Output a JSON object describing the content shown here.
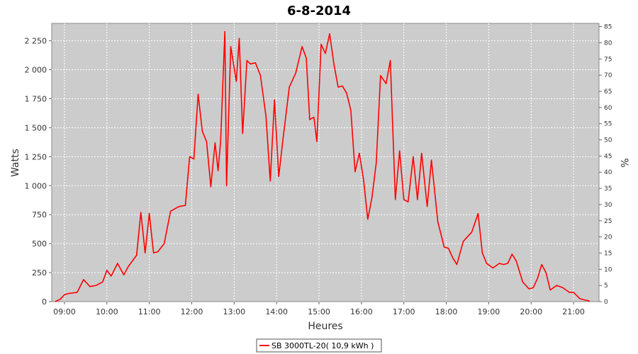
{
  "chart_data": {
    "type": "line",
    "title": "6-8-2014",
    "xlabel": "Heures",
    "ylabel": "Watts",
    "y2label": "%",
    "xlim": [
      8.7,
      21.6
    ],
    "ylim": [
      0,
      2400
    ],
    "y2lim": [
      0,
      86
    ],
    "x_ticks": [
      "09:00",
      "10:00",
      "11:00",
      "12:00",
      "13:00",
      "14:00",
      "15:00",
      "16:00",
      "17:00",
      "18:00",
      "19:00",
      "20:00",
      "21:00"
    ],
    "x_tick_values": [
      9,
      10,
      11,
      12,
      13,
      14,
      15,
      16,
      17,
      18,
      19,
      20,
      21
    ],
    "y_ticks": [
      "0",
      "250",
      "500",
      "750",
      "1 000",
      "1 250",
      "1 500",
      "1 750",
      "2 000",
      "2 250"
    ],
    "y_tick_values": [
      0,
      250,
      500,
      750,
      1000,
      1250,
      1500,
      1750,
      2000,
      2250
    ],
    "y2_ticks": [
      "0",
      "5",
      "10",
      "15",
      "20",
      "25",
      "30",
      "35",
      "40",
      "45",
      "50",
      "55",
      "60",
      "65",
      "70",
      "75",
      "80",
      "85"
    ],
    "y2_tick_values": [
      0,
      5,
      10,
      15,
      20,
      25,
      30,
      35,
      40,
      45,
      50,
      55,
      60,
      65,
      70,
      75,
      80,
      85
    ],
    "grid": true,
    "legend_position": "bottom-center",
    "series": [
      {
        "name": "SB 3000TL-20( 10,9 kWh )",
        "color": "#ff0000",
        "x": [
          8.78,
          8.9,
          9.0,
          9.1,
          9.3,
          9.45,
          9.6,
          9.75,
          9.9,
          10.0,
          10.1,
          10.25,
          10.4,
          10.5,
          10.7,
          10.8,
          10.9,
          11.0,
          11.1,
          11.2,
          11.35,
          11.5,
          11.7,
          11.85,
          11.95,
          12.05,
          12.15,
          12.25,
          12.35,
          12.45,
          12.55,
          12.62,
          12.68,
          12.78,
          12.82,
          12.92,
          13.05,
          13.12,
          13.2,
          13.3,
          13.38,
          13.5,
          13.62,
          13.75,
          13.85,
          13.95,
          14.05,
          14.15,
          14.3,
          14.45,
          14.6,
          14.7,
          14.78,
          14.88,
          14.95,
          15.05,
          15.15,
          15.25,
          15.35,
          15.45,
          15.55,
          15.65,
          15.75,
          15.85,
          15.95,
          16.05,
          16.15,
          16.25,
          16.35,
          16.45,
          16.58,
          16.68,
          16.8,
          16.9,
          17.0,
          17.1,
          17.22,
          17.32,
          17.42,
          17.55,
          17.65,
          17.8,
          17.95,
          18.05,
          18.15,
          18.25,
          18.4,
          18.6,
          18.75,
          18.85,
          18.95,
          19.1,
          19.25,
          19.35,
          19.45,
          19.55,
          19.65,
          19.8,
          19.95,
          20.05,
          20.15,
          20.25,
          20.35,
          20.45,
          20.6,
          20.75,
          20.9,
          21.0,
          21.15,
          21.25,
          21.38
        ],
        "values": [
          0,
          20,
          60,
          70,
          80,
          190,
          130,
          140,
          170,
          270,
          220,
          330,
          230,
          300,
          400,
          770,
          420,
          760,
          420,
          430,
          500,
          780,
          820,
          830,
          1250,
          1230,
          1790,
          1470,
          1380,
          990,
          1370,
          1130,
          1380,
          2330,
          1000,
          2200,
          1900,
          2270,
          1450,
          2080,
          2050,
          2060,
          1950,
          1600,
          1040,
          1740,
          1080,
          1400,
          1850,
          1970,
          2200,
          2100,
          1570,
          1590,
          1380,
          2220,
          2140,
          2310,
          2050,
          1850,
          1860,
          1800,
          1650,
          1120,
          1280,
          1050,
          710,
          900,
          1200,
          1950,
          1880,
          2080,
          880,
          1300,
          880,
          860,
          1250,
          880,
          1280,
          820,
          1220,
          690,
          470,
          460,
          380,
          320,
          520,
          600,
          760,
          420,
          330,
          290,
          330,
          320,
          330,
          410,
          350,
          170,
          110,
          120,
          200,
          320,
          250,
          100,
          140,
          120,
          80,
          80,
          25,
          15,
          5
        ]
      }
    ]
  }
}
